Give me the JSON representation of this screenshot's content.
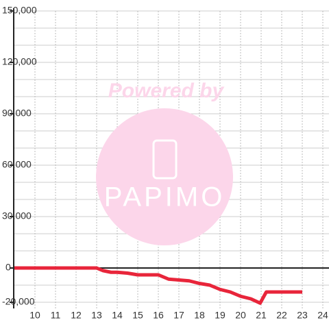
{
  "chart_data": {
    "type": "line",
    "watermark": {
      "line1": "Powered by",
      "line2": "PAPIMO"
    },
    "x": [
      9,
      10,
      11,
      12,
      13,
      13.3,
      13.7,
      14,
      14.5,
      15,
      16,
      16.2,
      16.5,
      17,
      17.5,
      18,
      18.5,
      19,
      19.5,
      20,
      20.5,
      20.95,
      21.25,
      22,
      23
    ],
    "series": [
      {
        "color": "#e8253a",
        "values": [
          0,
          0,
          0,
          0,
          0,
          -1500,
          -2500,
          -2500,
          -3000,
          -4000,
          -4000,
          -5000,
          -6500,
          -7000,
          -7500,
          -9000,
          -10000,
          -12500,
          -14000,
          -16500,
          -18000,
          -20500,
          -14000,
          -14000,
          -14000
        ]
      }
    ],
    "xlim": [
      9,
      24.3
    ],
    "xticks": [
      10,
      11,
      12,
      13,
      14,
      15,
      16,
      17,
      18,
      19,
      20,
      21,
      22,
      23,
      24
    ],
    "ylim": [
      -20000,
      150000
    ],
    "yticks": [
      {
        "value": -20000,
        "label": "-20,000"
      },
      0,
      {
        "value": 30000,
        "label": "30,000"
      },
      {
        "value": 60000,
        "label": "60,000"
      },
      {
        "value": 90000,
        "label": "90,000"
      },
      {
        "value": 120000,
        "label": "120,000"
      },
      {
        "value": 150000,
        "label": "150,000"
      }
    ],
    "minor_yticks": [
      -10000,
      10000,
      20000,
      40000,
      50000,
      70000,
      80000,
      100000,
      110000,
      130000,
      140000
    ],
    "grid": true
  }
}
